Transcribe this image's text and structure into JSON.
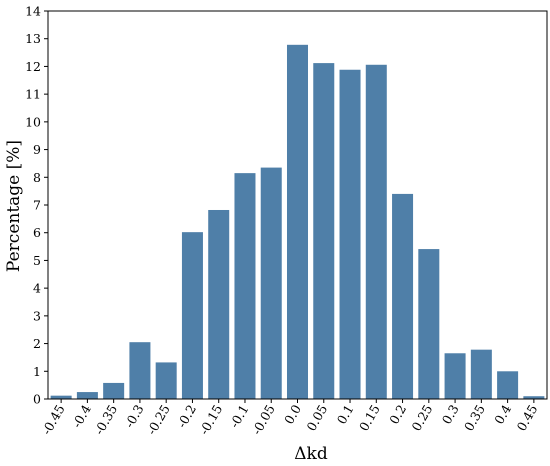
{
  "chart_data": {
    "type": "bar",
    "categories": [
      "-0.45",
      "-0.4",
      "-0.35",
      "-0.3",
      "-0.25",
      "-0.2",
      "-0.15",
      "-0.1",
      "-0.05",
      "0.0",
      "0.05",
      "0.1",
      "0.15",
      "0.2",
      "0.25",
      "0.3",
      "0.35",
      "0.4",
      "0.45"
    ],
    "values": [
      0.12,
      0.25,
      0.58,
      2.05,
      1.32,
      6.02,
      6.82,
      8.15,
      8.35,
      12.78,
      12.12,
      11.88,
      12.06,
      7.4,
      5.41,
      1.65,
      1.78,
      1.0,
      0.1
    ],
    "title": "",
    "xlabel": "Δkd",
    "ylabel": "Percentage [%]",
    "ylim": [
      0,
      14
    ],
    "yticks": [
      0,
      1,
      2,
      3,
      4,
      5,
      6,
      7,
      8,
      9,
      10,
      11,
      12,
      13,
      14
    ],
    "grid": false,
    "bar_color": "#4f7fa8"
  }
}
